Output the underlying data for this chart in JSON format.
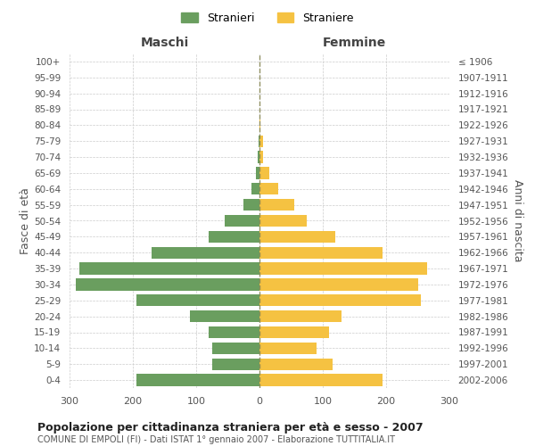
{
  "age_groups": [
    "100+",
    "95-99",
    "90-94",
    "85-89",
    "80-84",
    "75-79",
    "70-74",
    "65-69",
    "60-64",
    "55-59",
    "50-54",
    "45-49",
    "40-44",
    "35-39",
    "30-34",
    "25-29",
    "20-24",
    "15-19",
    "10-14",
    "5-9",
    "0-4"
  ],
  "birth_years": [
    "≤ 1906",
    "1907-1911",
    "1912-1916",
    "1917-1921",
    "1922-1926",
    "1927-1931",
    "1932-1936",
    "1937-1941",
    "1942-1946",
    "1947-1951",
    "1952-1956",
    "1957-1961",
    "1962-1966",
    "1967-1971",
    "1972-1976",
    "1977-1981",
    "1982-1986",
    "1987-1991",
    "1992-1996",
    "1997-2001",
    "2002-2006"
  ],
  "maschi": [
    0,
    0,
    0,
    0,
    0,
    2,
    3,
    6,
    12,
    25,
    55,
    80,
    170,
    285,
    290,
    195,
    110,
    80,
    75,
    75,
    195
  ],
  "femmine": [
    0,
    0,
    0,
    0,
    2,
    5,
    5,
    15,
    30,
    55,
    75,
    120,
    195,
    265,
    250,
    255,
    130,
    110,
    90,
    115,
    195
  ],
  "maschi_color": "#6a9e5f",
  "femmine_color": "#f5c242",
  "center_line_color": "#888855",
  "title": "Popolazione per cittadinanza straniera per età e sesso - 2007",
  "subtitle": "COMUNE DI EMPOLI (FI) - Dati ISTAT 1° gennaio 2007 - Elaborazione TUTTITALIA.IT",
  "ylabel_left": "Fasce di età",
  "ylabel_right": "Anni di nascita",
  "xlabel_left": "Maschi",
  "xlabel_right": "Femmine",
  "legend_maschi": "Stranieri",
  "legend_femmine": "Straniere",
  "xlim": 300,
  "background_color": "#ffffff",
  "grid_color": "#cccccc"
}
